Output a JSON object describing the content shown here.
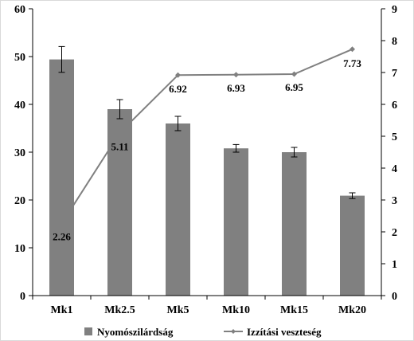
{
  "chart_data": {
    "type": "bar",
    "categories": [
      "Mk1",
      "Mk2.5",
      "Mk5",
      "Mk10",
      "Mk15",
      "Mk20"
    ],
    "series": [
      {
        "name": "Nyomószilárdság",
        "type": "bar",
        "axis": "left",
        "values": [
          49.4,
          39.0,
          36.0,
          30.8,
          30.0,
          20.9
        ],
        "error": [
          2.7,
          2.0,
          1.5,
          0.8,
          1.0,
          0.6
        ],
        "color": "#808080"
      },
      {
        "name": "Izzítási veszteség",
        "type": "line",
        "axis": "right",
        "values": [
          2.26,
          5.11,
          6.92,
          6.93,
          6.95,
          7.73
        ],
        "data_labels": [
          "2.26",
          "5.11",
          "6.92",
          "6.93",
          "6.95",
          "7.73"
        ],
        "color": "#808080"
      }
    ],
    "y_left": {
      "ylim": [
        0,
        60
      ],
      "ticks": [
        "0",
        "10",
        "20",
        "30",
        "40",
        "50",
        "60"
      ]
    },
    "y_right": {
      "ylim": [
        0,
        9
      ],
      "ticks": [
        "0",
        "1",
        "2",
        "3",
        "4",
        "5",
        "6",
        "7",
        "8",
        "9"
      ]
    },
    "legend_position": "bottom",
    "grid": false
  }
}
